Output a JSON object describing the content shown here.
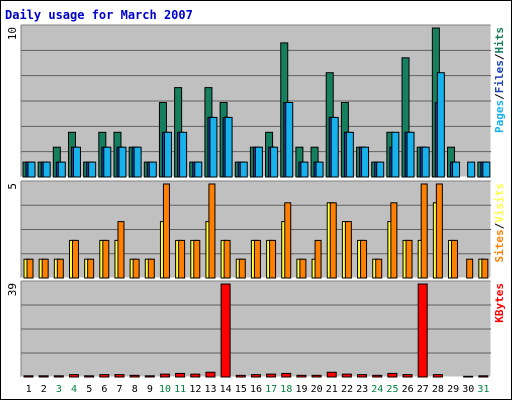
{
  "title": "Daily usage for March 2007",
  "colors": {
    "hits": "#157f5e",
    "files": "#1b42b4",
    "pages": "#17b2eb",
    "visits": "#ffff40",
    "sites": "#ff8000",
    "kbytes": "#ff0000",
    "weekend_day_label": "#008040",
    "weekday_label": "#000000",
    "plot_bg": "#c0c0c0",
    "gridline": "#606060"
  },
  "chart_data": [
    {
      "type": "bar",
      "name": "hits-files-pages",
      "categories": [
        "1",
        "2",
        "3",
        "4",
        "5",
        "6",
        "7",
        "8",
        "9",
        "10",
        "11",
        "12",
        "13",
        "14",
        "15",
        "16",
        "17",
        "18",
        "19",
        "20",
        "21",
        "22",
        "23",
        "24",
        "25",
        "26",
        "27",
        "28",
        "29",
        "30",
        "31"
      ],
      "weekend_days": [
        "3",
        "4",
        "10",
        "11",
        "17",
        "18",
        "24",
        "25",
        "31"
      ],
      "ymax_label": "10",
      "right_labels": [
        "Pages",
        "Files",
        "Hits"
      ],
      "ylim": [
        0,
        10
      ],
      "series": [
        {
          "name": "Hits",
          "values": [
            1,
            1,
            2,
            3,
            1,
            3,
            3,
            2,
            1,
            5,
            6,
            1,
            6,
            5,
            1,
            2,
            3,
            9,
            2,
            2,
            7,
            5,
            2,
            1,
            3,
            8,
            2,
            10,
            2,
            0,
            1
          ]
        },
        {
          "name": "Files",
          "values": [
            1,
            1,
            1,
            2,
            1,
            2,
            2,
            2,
            1,
            3,
            3,
            1,
            4,
            4,
            1,
            2,
            2,
            5,
            1,
            1,
            4,
            3,
            2,
            1,
            2,
            3,
            2,
            5,
            1,
            0,
            1
          ]
        },
        {
          "name": "Pages",
          "values": [
            1,
            1,
            1,
            2,
            1,
            2,
            2,
            2,
            1,
            3,
            3,
            1,
            4,
            4,
            1,
            2,
            2,
            5,
            1,
            1,
            4,
            3,
            2,
            1,
            3,
            3,
            2,
            7,
            1,
            1,
            1
          ]
        }
      ]
    },
    {
      "type": "bar",
      "name": "visits-sites",
      "categories": [
        "1",
        "2",
        "3",
        "4",
        "5",
        "6",
        "7",
        "8",
        "9",
        "10",
        "11",
        "12",
        "13",
        "14",
        "15",
        "16",
        "17",
        "18",
        "19",
        "20",
        "21",
        "22",
        "23",
        "24",
        "25",
        "26",
        "27",
        "28",
        "29",
        "30",
        "31"
      ],
      "ymax_label": "5",
      "right_labels": [
        "Sites",
        "Visits"
      ],
      "ylim": [
        0,
        5
      ],
      "series": [
        {
          "name": "Visits",
          "values": [
            1,
            1,
            1,
            2,
            1,
            2,
            2,
            1,
            1,
            3,
            2,
            2,
            3,
            2,
            1,
            2,
            2,
            3,
            1,
            1,
            4,
            3,
            2,
            1,
            3,
            2,
            2,
            4,
            2,
            0,
            1
          ]
        },
        {
          "name": "Sites",
          "values": [
            1,
            1,
            1,
            2,
            1,
            2,
            3,
            1,
            1,
            5,
            2,
            2,
            5,
            2,
            1,
            2,
            2,
            4,
            1,
            2,
            4,
            3,
            2,
            1,
            4,
            2,
            5,
            5,
            2,
            1,
            1
          ]
        }
      ]
    },
    {
      "type": "bar",
      "name": "kbytes",
      "categories": [
        "1",
        "2",
        "3",
        "4",
        "5",
        "6",
        "7",
        "8",
        "9",
        "10",
        "11",
        "12",
        "13",
        "14",
        "15",
        "16",
        "17",
        "18",
        "19",
        "20",
        "21",
        "22",
        "23",
        "24",
        "25",
        "26",
        "27",
        "28",
        "29",
        "30",
        "31"
      ],
      "ymax_label": "39",
      "right_labels": [
        "KBytes"
      ],
      "ylim": [
        0,
        39
      ],
      "series": [
        {
          "name": "KBytes",
          "values": [
            0.5,
            0.5,
            0.5,
            1,
            0.5,
            1,
            1,
            0.7,
            0.5,
            1.2,
            1.5,
            1.2,
            2,
            39,
            0.7,
            1,
            1.2,
            1.5,
            0.7,
            0.7,
            2,
            1.2,
            1,
            0.7,
            1.5,
            1,
            39,
            1,
            0,
            0.3,
            0.5
          ]
        }
      ]
    }
  ]
}
